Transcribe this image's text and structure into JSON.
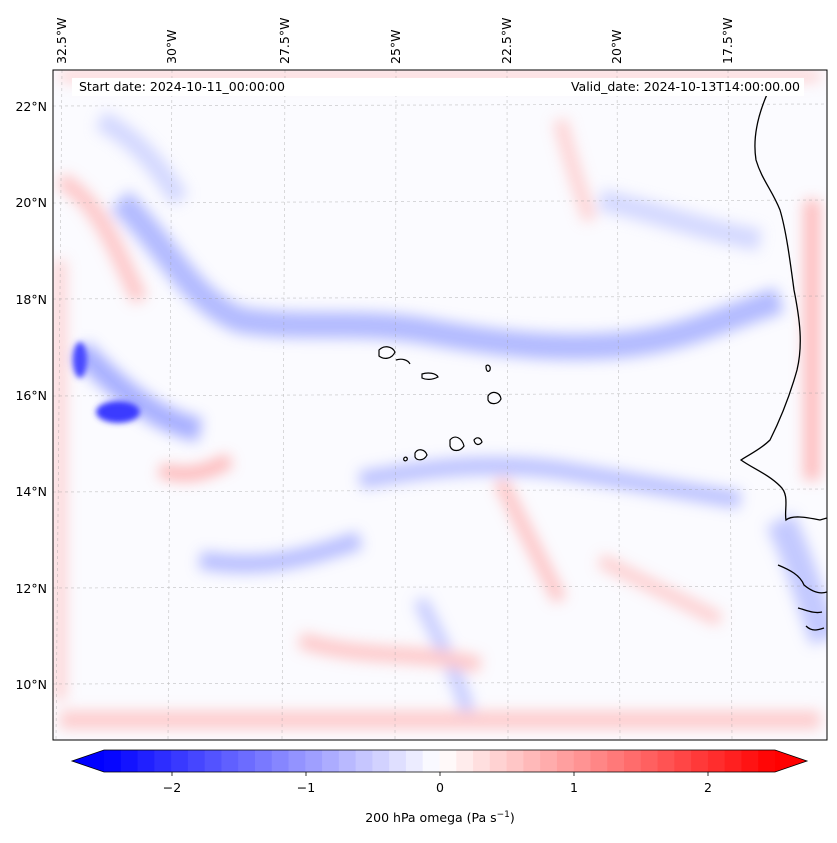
{
  "map": {
    "start_label": "Start date: 2024-10-11_00:00:00",
    "valid_label": "Valid_date: 2024-10-13T14:00:00.00",
    "lon_labels": [
      "32.5°W",
      "30°W",
      "27.5°W",
      "25°W",
      "22.5°W",
      "20°W",
      "17.5°W"
    ],
    "lat_labels": [
      "22°N",
      "20°N",
      "18°N",
      "16°N",
      "14°N",
      "12°N",
      "10°N"
    ]
  },
  "colorbar": {
    "label_main": "200 hPa omega (Pa s",
    "label_exp": "−1",
    "label_close": ")",
    "ticks": [
      "−2",
      "−1",
      "0",
      "1",
      "2"
    ],
    "low_color": "#0000ff",
    "high_color": "#ff0000"
  }
}
